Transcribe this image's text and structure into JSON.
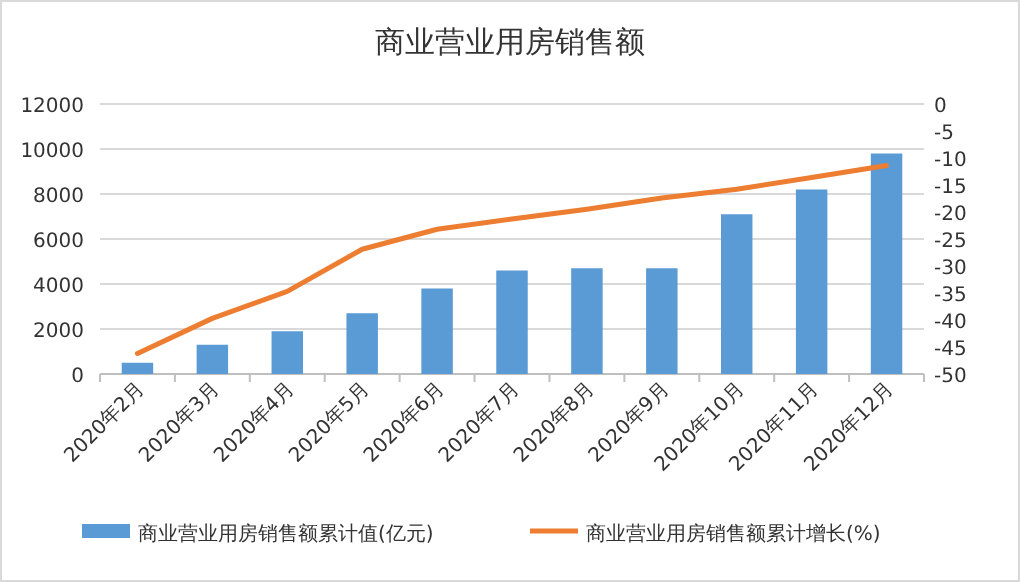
{
  "chart_data": {
    "type": "bar",
    "title": "商业营业用房销售额",
    "categories": [
      "2020年2月",
      "2020年3月",
      "2020年4月",
      "2020年5月",
      "2020年6月",
      "2020年7月",
      "2020年8月",
      "2020年9月",
      "2020年10月",
      "2020年11月",
      "2020年12月"
    ],
    "series": [
      {
        "name": "商业营业用房销售额累计值(亿元)",
        "color": "#5b9bd5",
        "values": [
          500,
          1300,
          1900,
          2700,
          3800,
          4600,
          4700,
          4700,
          7100,
          8200,
          9800
        ]
      },
      {
        "name": "商业营业用房销售额累计增长(%)",
        "type": "line",
        "axis": "y2",
        "color": "#ed7d31",
        "values": [
          -46.2,
          -39.7,
          -34.7,
          -26.9,
          -23.2,
          -21.3,
          -19.5,
          -17.4,
          -15.8,
          -13.6,
          -11.4
        ]
      }
    ],
    "ylim": [
      0,
      12000
    ],
    "yticks": [
      0,
      2000,
      4000,
      6000,
      8000,
      10000,
      12000
    ],
    "y2lim": [
      -50,
      0
    ],
    "y2ticks": [
      -50,
      -45,
      -40,
      -35,
      -30,
      -25,
      -20,
      -15,
      -10,
      -5,
      0
    ],
    "grid": "y",
    "legend": "bottom"
  }
}
